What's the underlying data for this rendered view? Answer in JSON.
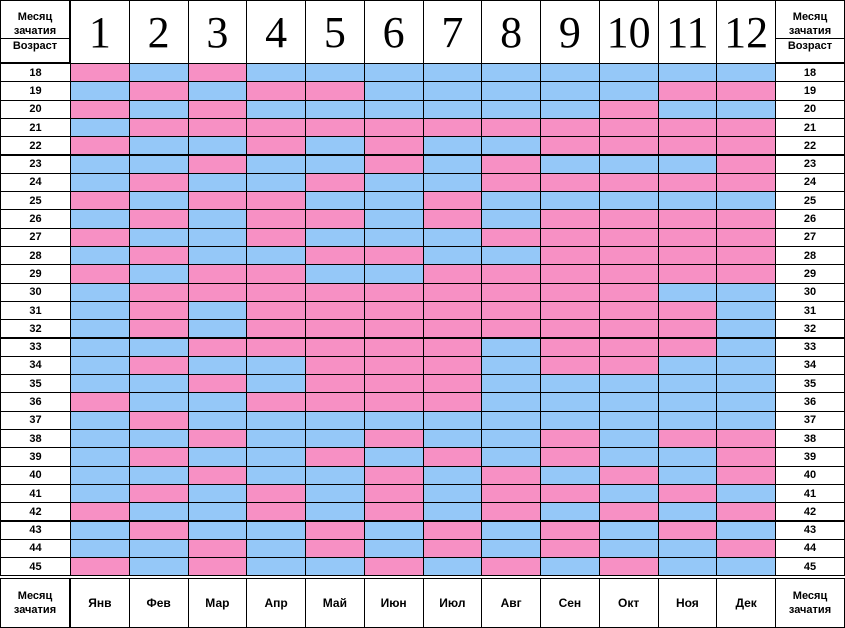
{
  "header": {
    "conception_label_line1": "Месяц",
    "conception_label_line2": "зачатия",
    "age_label": "Возраст"
  },
  "footer": {
    "conception_label_line1": "Месяц",
    "conception_label_line2": "зачатия"
  },
  "months": [
    "1",
    "2",
    "3",
    "4",
    "5",
    "6",
    "7",
    "8",
    "9",
    "10",
    "11",
    "12"
  ],
  "month_names": [
    "Янв",
    "Фев",
    "Мар",
    "Апр",
    "Май",
    "Июн",
    "Июл",
    "Авг",
    "Сен",
    "Окт",
    "Ноя",
    "Дек"
  ],
  "ages": [
    "18",
    "19",
    "20",
    "21",
    "22",
    "23",
    "24",
    "25",
    "26",
    "27",
    "28",
    "29",
    "30",
    "31",
    "32",
    "33",
    "34",
    "35",
    "36",
    "37",
    "38",
    "39",
    "40",
    "41",
    "42",
    "43",
    "44",
    "45"
  ],
  "colors": {
    "girl": "#f790c4",
    "boy": "#95c8f8",
    "border": "#000000"
  },
  "legend": {
    "G": "girl",
    "B": "boy"
  },
  "rows": [
    "GBGBBBBBBBBB",
    "BGBGGBBBBBGG",
    "GBGBBBBBBGBB",
    "BGGGGGGGGGGG",
    "GBBGBGBBGGGG",
    "BBGBBGBGBBBG",
    "BGBBGBBGGGGG",
    "GBGGBBGBBBBB",
    "BGBGGBGBGGGG",
    "GBBGBBBGGGGG",
    "BGBBGGBBGGGG",
    "GBGGBBGGGGGG",
    "BGGGGGGGGGBB",
    "BGBGGGGGGGGB",
    "BGBGGGGGGGGB",
    "BBGGGGGBGGGB",
    "BGBBGGGBGGBB",
    "BBGBGGGBBBBB",
    "GBBGGGGBBBBB",
    "BGBBBBBBBBBB",
    "BBGBBGBBGBGG",
    "BGBBGBGBGBBG",
    "BBGBBGBGBGBG",
    "BGBGBGBGGBGB",
    "GBBGBGBGBGBG",
    "BGBBGBGBGBGB",
    "BBGBGBGBGBBG",
    "GBGBBGBGBGBB"
  ]
}
